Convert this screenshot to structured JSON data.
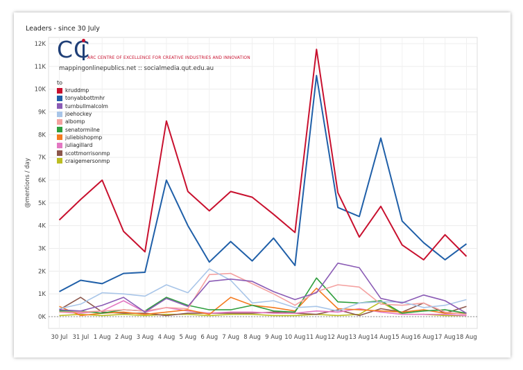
{
  "page": {
    "title": "Leaders - since 30 July"
  },
  "logo": {
    "letters": "CC",
    "tagline": "ARC CENTRE OF EXCELLENCE FOR CREATIVE INDUSTRIES AND INNOVATION",
    "url": "mappingonlinepublics.net :: socialmedia.qut.edu.au"
  },
  "legend": {
    "title": "to"
  },
  "chart_data": {
    "type": "line",
    "title": "Leaders - since 30 July",
    "xlabel": "",
    "ylabel": "@mentions / day",
    "ylim": [
      0,
      12000
    ],
    "yticks": [
      0,
      1000,
      2000,
      3000,
      4000,
      5000,
      6000,
      7000,
      8000,
      9000,
      10000,
      11000,
      12000
    ],
    "ytick_labels": [
      "0K",
      "1K",
      "2K",
      "3K",
      "4K",
      "5K",
      "6K",
      "7K",
      "8K",
      "9K",
      "10K",
      "11K",
      "12K"
    ],
    "grid": true,
    "legend_position": "top-left",
    "categories": [
      "30 Jul",
      "31 Jul",
      "1 Aug",
      "2 Aug",
      "3 Aug",
      "4 Aug",
      "5 Aug",
      "6 Aug",
      "7 Aug",
      "8 Aug",
      "9 Aug",
      "10 Aug",
      "11 Aug",
      "12 Aug",
      "13 Aug",
      "14 Aug",
      "15 Aug",
      "16 Aug",
      "17 Aug",
      "18 Aug"
    ],
    "series": [
      {
        "name": "kruddmp",
        "color": "#c8102e",
        "values": [
          4250,
          5150,
          6000,
          3750,
          2850,
          8600,
          5500,
          4650,
          5500,
          5250,
          4500,
          3700,
          11750,
          5450,
          3500,
          4850,
          3150,
          2500,
          3600,
          2650
        ]
      },
      {
        "name": "tonyabbottmhr",
        "color": "#1f5fa8",
        "values": [
          1100,
          1600,
          1450,
          1900,
          1950,
          6000,
          4000,
          2400,
          3300,
          2450,
          3450,
          2250,
          10600,
          4800,
          4400,
          7850,
          4200,
          3250,
          2500,
          3200
        ]
      },
      {
        "name": "turnbullmalcolm",
        "color": "#8a5bb5",
        "values": [
          300,
          250,
          500,
          850,
          200,
          800,
          450,
          1550,
          1650,
          1550,
          1100,
          750,
          1050,
          2350,
          2150,
          800,
          600,
          950,
          700,
          150
        ]
      },
      {
        "name": "joehockey",
        "color": "#a8c5e8",
        "values": [
          350,
          550,
          1050,
          1000,
          900,
          1400,
          1050,
          2100,
          1600,
          600,
          700,
          400,
          450,
          250,
          600,
          650,
          650,
          400,
          500,
          750
        ]
      },
      {
        "name": "albomp",
        "color": "#f4a1a0",
        "values": [
          200,
          200,
          250,
          300,
          250,
          400,
          350,
          1850,
          1900,
          1450,
          1000,
          500,
          1100,
          1400,
          1300,
          550,
          500,
          600,
          200,
          100
        ]
      },
      {
        "name": "senatormilne",
        "color": "#2e9e3d",
        "values": [
          250,
          250,
          150,
          300,
          250,
          850,
          500,
          300,
          300,
          500,
          250,
          200,
          1700,
          650,
          600,
          700,
          150,
          250,
          300,
          150
        ]
      },
      {
        "name": "juliebishopmp",
        "color": "#f47b20",
        "values": [
          450,
          50,
          150,
          200,
          100,
          200,
          300,
          100,
          850,
          500,
          400,
          250,
          1250,
          350,
          300,
          250,
          200,
          300,
          150,
          150
        ]
      },
      {
        "name": "juliagillard",
        "color": "#e377c2",
        "values": [
          200,
          150,
          250,
          700,
          200,
          400,
          250,
          150,
          200,
          200,
          150,
          150,
          250,
          200,
          350,
          200,
          100,
          100,
          100,
          50
        ]
      },
      {
        "name": "scottmorrisonmp",
        "color": "#8c564b",
        "values": [
          300,
          850,
          200,
          150,
          150,
          50,
          150,
          150,
          150,
          150,
          200,
          150,
          100,
          300,
          50,
          350,
          200,
          600,
          150,
          450
        ]
      },
      {
        "name": "craigemersonmp",
        "color": "#bcbd22",
        "values": [
          50,
          100,
          50,
          100,
          50,
          100,
          100,
          50,
          100,
          100,
          50,
          50,
          100,
          50,
          100,
          650,
          100,
          100,
          50,
          50
        ]
      }
    ]
  }
}
